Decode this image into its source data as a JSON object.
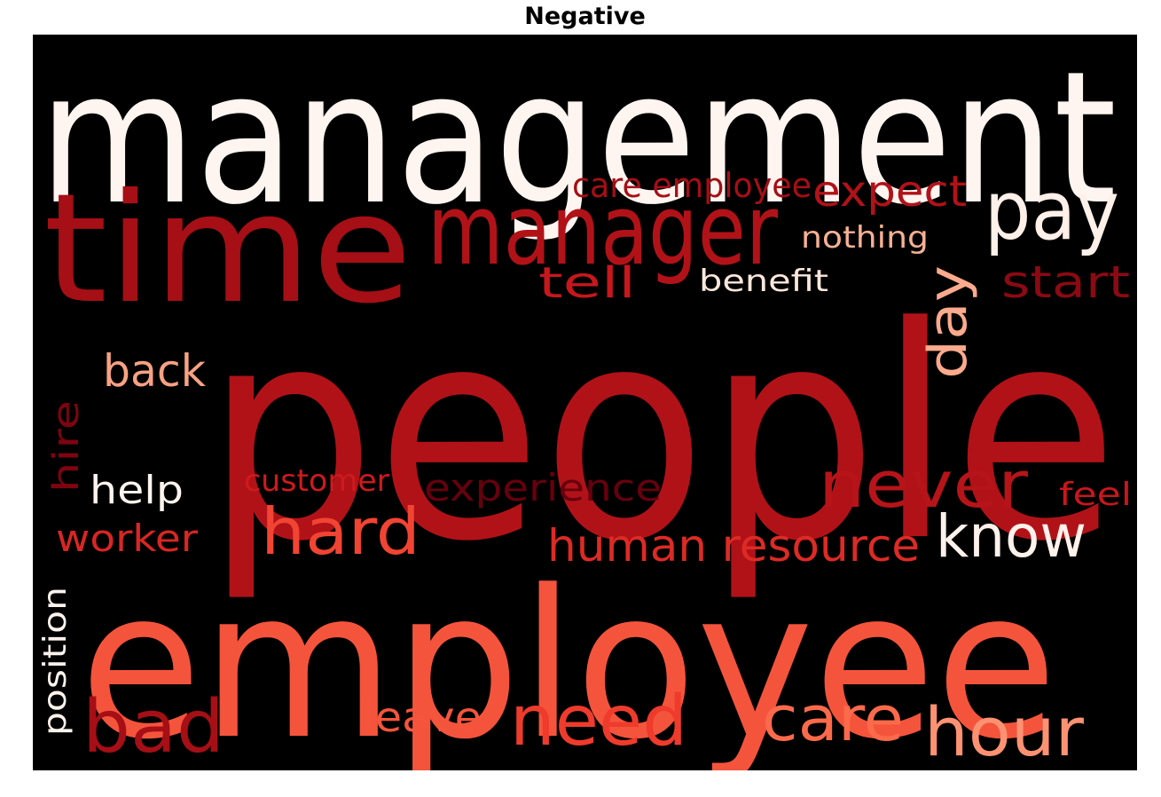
{
  "chart_data": {
    "type": "wordcloud",
    "title": "Negative",
    "background_color": "#000000",
    "colormap": "Reds",
    "words": [
      {
        "text": "management",
        "color": "#fff5f0"
      },
      {
        "text": "people",
        "color": "#b11218"
      },
      {
        "text": "employee",
        "color": "#f5543c"
      },
      {
        "text": "time",
        "color": "#a50f15"
      },
      {
        "text": "manager",
        "color": "#b11218"
      },
      {
        "text": "pay",
        "color": "#fff0e9"
      },
      {
        "text": "care employee",
        "color": "#a50f15"
      },
      {
        "text": "expect",
        "color": "#b11218"
      },
      {
        "text": "nothing",
        "color": "#f6b193"
      },
      {
        "text": "tell",
        "color": "#c8171c"
      },
      {
        "text": "benefit",
        "color": "#fde7dc"
      },
      {
        "text": "start",
        "color": "#8b0a13"
      },
      {
        "text": "day",
        "color": "#fcaa8d"
      },
      {
        "text": "back",
        "color": "#f7a283"
      },
      {
        "text": "hire",
        "color": "#7f0410"
      },
      {
        "text": "help",
        "color": "#fff4ef"
      },
      {
        "text": "customer",
        "color": "#ce1a1e"
      },
      {
        "text": "experience",
        "color": "#67000d"
      },
      {
        "text": "never",
        "color": "#b61419"
      },
      {
        "text": "feel",
        "color": "#c8171c"
      },
      {
        "text": "worker",
        "color": "#d92624"
      },
      {
        "text": "hard",
        "color": "#f14432"
      },
      {
        "text": "human resource",
        "color": "#dd2a25"
      },
      {
        "text": "know",
        "color": "#fff1eb"
      },
      {
        "text": "position",
        "color": "#fff2ec"
      },
      {
        "text": "bad",
        "color": "#a50f15"
      },
      {
        "text": "leave",
        "color": "#f5553c"
      },
      {
        "text": "need",
        "color": "#ef3b2c"
      },
      {
        "text": "care",
        "color": "#fb6a4a"
      },
      {
        "text": "hour",
        "color": "#fc9272"
      }
    ]
  }
}
